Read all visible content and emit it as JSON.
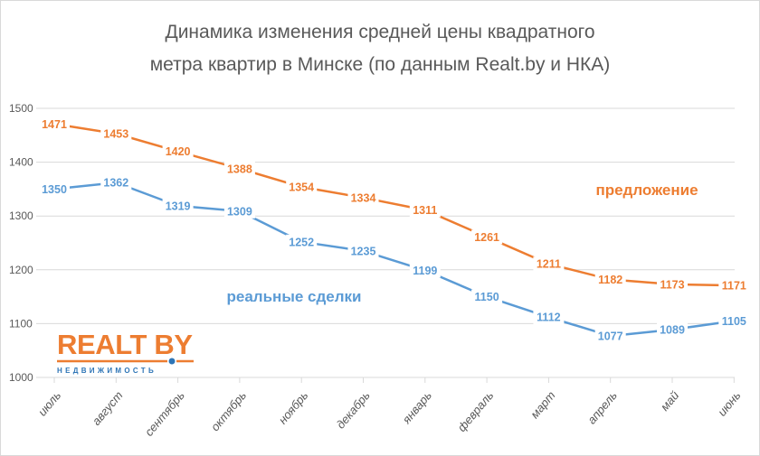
{
  "chart_data": {
    "type": "line",
    "title_line1": "Динамика изменения средней цены квадратного",
    "title_line2": "метра квартир в Минске (по данным Realt.by и НКА)",
    "categories": [
      "июль",
      "август",
      "сентябрь",
      "октябрь",
      "ноябрь",
      "декабрь",
      "январь",
      "февраль",
      "март",
      "апрель",
      "май",
      "июнь"
    ],
    "ylim": [
      1000,
      1500
    ],
    "yticks": [
      1000,
      1100,
      1200,
      1300,
      1400,
      1500
    ],
    "grid": true,
    "series": [
      {
        "name": "предложение",
        "color": "#ed7d31",
        "values": [
          1471,
          1453,
          1420,
          1388,
          1354,
          1334,
          1311,
          1261,
          1211,
          1182,
          1173,
          1171
        ]
      },
      {
        "name": "реальные сделки",
        "color": "#5b9bd5",
        "values": [
          1350,
          1362,
          1319,
          1309,
          1252,
          1235,
          1199,
          1150,
          1112,
          1077,
          1089,
          1105
        ]
      }
    ]
  },
  "logo": {
    "name": "REALT BY",
    "subtitle": "недвижимость"
  }
}
